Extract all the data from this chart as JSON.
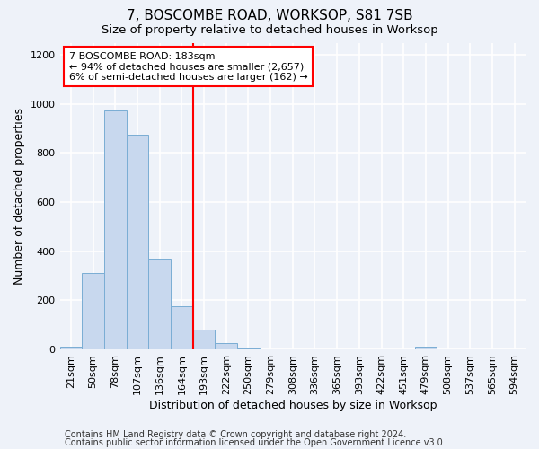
{
  "title": "7, BOSCOMBE ROAD, WORKSOP, S81 7SB",
  "subtitle": "Size of property relative to detached houses in Worksop",
  "xlabel": "Distribution of detached houses by size in Worksop",
  "ylabel": "Number of detached properties",
  "categories": [
    "21sqm",
    "50sqm",
    "78sqm",
    "107sqm",
    "136sqm",
    "164sqm",
    "193sqm",
    "222sqm",
    "250sqm",
    "279sqm",
    "308sqm",
    "336sqm",
    "365sqm",
    "393sqm",
    "422sqm",
    "451sqm",
    "479sqm",
    "508sqm",
    "537sqm",
    "565sqm",
    "594sqm"
  ],
  "values": [
    10,
    310,
    975,
    875,
    370,
    175,
    80,
    25,
    5,
    0,
    0,
    0,
    0,
    0,
    0,
    0,
    10,
    0,
    0,
    0,
    0
  ],
  "bar_color": "#c8d8ee",
  "bar_edge_color": "#7aadd4",
  "red_line_x": 6.0,
  "annotation_line1": "7 BOSCOMBE ROAD: 183sqm",
  "annotation_line2": "← 94% of detached houses are smaller (2,657)",
  "annotation_line3": "6% of semi-detached houses are larger (162) →",
  "annotation_box_color": "white",
  "annotation_box_edge": "red",
  "vline_color": "red",
  "ylim": [
    0,
    1250
  ],
  "yticks": [
    0,
    200,
    400,
    600,
    800,
    1000,
    1200
  ],
  "footer_line1": "Contains HM Land Registry data © Crown copyright and database right 2024.",
  "footer_line2": "Contains public sector information licensed under the Open Government Licence v3.0.",
  "background_color": "#eef2f9",
  "grid_color": "white",
  "title_fontsize": 11,
  "subtitle_fontsize": 9.5,
  "axis_label_fontsize": 9,
  "tick_fontsize": 8,
  "annotation_fontsize": 8,
  "footer_fontsize": 7
}
